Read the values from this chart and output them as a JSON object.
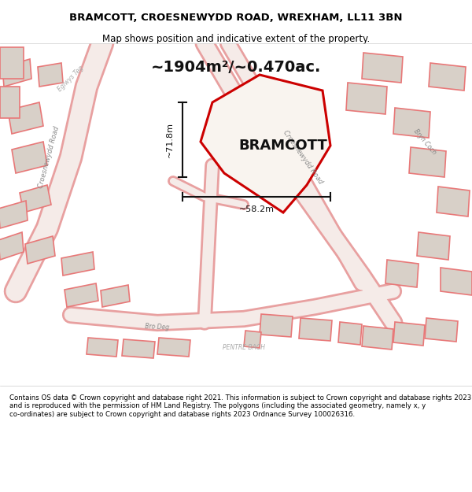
{
  "title_line1": "BRAMCOTT, CROESNEWYDD ROAD, WREXHAM, LL11 3BN",
  "title_line2": "Map shows position and indicative extent of the property.",
  "area_text": "~1904m²/~0.470ac.",
  "label_main": "BRAMCOTT",
  "dim_vertical": "~71.8m",
  "dim_horizontal": "~58.2m",
  "footer_text": "Contains OS data © Crown copyright and database right 2021. This information is subject to Crown copyright and database rights 2023 and is reproduced with the permission of HM Land Registry. The polygons (including the associated geometry, namely x, y co-ordinates) are subject to Crown copyright and database rights 2023 Ordnance Survey 100026316.",
  "bg_color": "#f5f0eb",
  "map_bg": "#f5f0eb",
  "road_color": "#f0c8c8",
  "road_stroke": "#e87878",
  "property_fill": "#f5f0eb",
  "property_stroke": "#cc0000",
  "building_fill": "#d8d0c8",
  "building_stroke": "#e87878",
  "footer_bg": "#ffffff",
  "title_bg": "#ffffff"
}
